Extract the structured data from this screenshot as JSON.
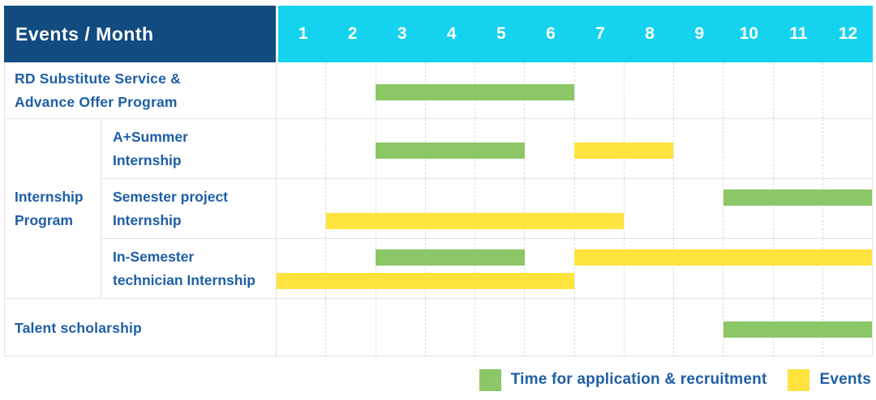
{
  "colors": {
    "header_blue": "#114b80",
    "header_cyan": "#15d3ee",
    "application_green": "#8bc766",
    "event_yellow": "#ffe33f",
    "label_text_blue": "#1e5ea6",
    "grid_line": "#e5e5e5"
  },
  "header": {
    "events_month_label": "Events / Month"
  },
  "chart_data": {
    "type": "gantt",
    "title": "Events / Month",
    "months": [
      "1",
      "2",
      "3",
      "4",
      "5",
      "6",
      "7",
      "8",
      "9",
      "10",
      "11",
      "12"
    ],
    "x_range": [
      1,
      12
    ],
    "grid": "dashed-vertical-month-lines",
    "legend_position": "bottom-right",
    "legend": [
      {
        "key": "application",
        "label": "Time for application & recruitment",
        "color": "#8bc766"
      },
      {
        "key": "event",
        "label": "Events",
        "color": "#ffe33f"
      }
    ],
    "rows": [
      {
        "label": "RD Substitute Service & Advance Offer Program",
        "label_lines": [
          "RD Substitute Service &",
          "Advance Offer Program"
        ],
        "bars": [
          {
            "kind": "application",
            "start_month": 3,
            "end_month": 6,
            "track": "single"
          }
        ]
      },
      {
        "group": "Internship Program",
        "group_lines": [
          "Internship",
          "Program"
        ],
        "label": "A+Summer Internship",
        "label_lines": [
          "A+Summer",
          "Internship"
        ],
        "bars": [
          {
            "kind": "application",
            "start_month": 3,
            "end_month": 5,
            "track": "single"
          },
          {
            "kind": "event",
            "start_month": 7,
            "end_month": 8,
            "track": "single"
          }
        ]
      },
      {
        "group": "Internship Program",
        "label": "Semester project Internship",
        "label_lines": [
          "Semester project",
          "Internship"
        ],
        "bars": [
          {
            "kind": "application",
            "start_month": 10,
            "end_month": 12,
            "track": "top"
          },
          {
            "kind": "event",
            "start_month": 2,
            "end_month": 7,
            "track": "bottom"
          }
        ]
      },
      {
        "group": "Internship Program",
        "label": "In-Semester technician Internship",
        "label_lines": [
          "In-Semester",
          "technician Internship"
        ],
        "bars": [
          {
            "kind": "application",
            "start_month": 3,
            "end_month": 5,
            "track": "top"
          },
          {
            "kind": "event",
            "start_month": 7,
            "end_month": 12,
            "track": "top"
          },
          {
            "kind": "event",
            "start_month": 1,
            "end_month": 6,
            "track": "bottom"
          }
        ]
      },
      {
        "label": "Talent scholarship",
        "label_lines": [
          "Talent scholarship"
        ],
        "bars": [
          {
            "kind": "application",
            "start_month": 10,
            "end_month": 12,
            "track": "single"
          }
        ]
      }
    ]
  }
}
